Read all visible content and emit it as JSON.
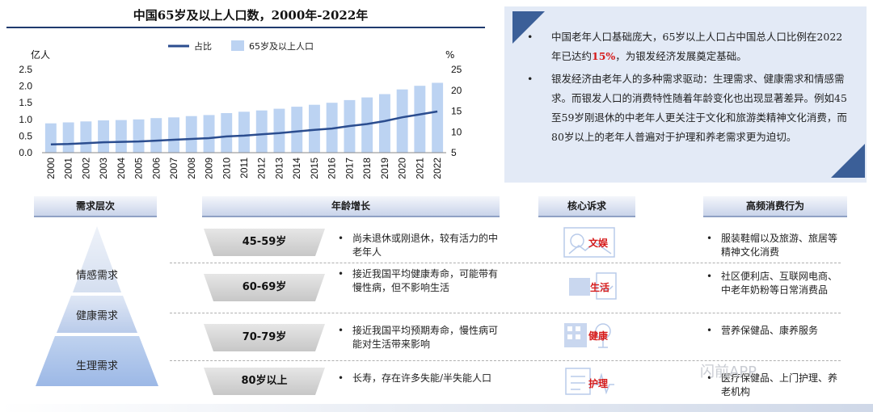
{
  "chart_data": {
    "type": "bar+line",
    "title": "中国65岁及以上人口数，2000年-2022年",
    "categories": [
      "2000",
      "2001",
      "2002",
      "2003",
      "2004",
      "2005",
      "2006",
      "2007",
      "2008",
      "2009",
      "2010",
      "2011",
      "2012",
      "2013",
      "2014",
      "2015",
      "2016",
      "2017",
      "2018",
      "2019",
      "2020",
      "2021",
      "2022"
    ],
    "series": [
      {
        "name": "65岁及以上人口",
        "type": "bar",
        "axis": "left",
        "values": [
          0.88,
          0.91,
          0.94,
          0.97,
          0.98,
          1.0,
          1.04,
          1.06,
          1.1,
          1.13,
          1.19,
          1.23,
          1.27,
          1.32,
          1.38,
          1.44,
          1.5,
          1.58,
          1.66,
          1.76,
          1.9,
          2.01,
          2.1
        ]
      },
      {
        "name": "占比",
        "type": "line",
        "axis": "right",
        "values": [
          7.0,
          7.1,
          7.3,
          7.5,
          7.6,
          7.7,
          7.9,
          8.1,
          8.3,
          8.5,
          8.9,
          9.1,
          9.4,
          9.7,
          10.1,
          10.5,
          10.8,
          11.4,
          11.9,
          12.6,
          13.5,
          14.2,
          14.9
        ]
      }
    ],
    "left_axis": {
      "unit": "亿人",
      "range": [
        0,
        2.5
      ],
      "ticks": [
        "0.0",
        "0.5",
        "1.0",
        "1.5",
        "2.0",
        "2.5"
      ]
    },
    "right_axis": {
      "unit": "%",
      "range": [
        5,
        25
      ],
      "ticks": [
        "5",
        "10",
        "15",
        "20",
        "25"
      ]
    },
    "legend_position": "top",
    "colors": {
      "bar": "#bcd3f2",
      "line": "#2b4d8f"
    }
  },
  "summary": {
    "bullet_char": "•",
    "p1_before": "中国老年人口基础庞大，65岁以上人口占中国总人口比例在2022年已达约",
    "p1_highlight": "15%",
    "p1_after": "，为银发经济发展奠定基础。",
    "p2": "银发经济由老年人的多种需求驱动：生理需求、健康需求和情感需求。而银发人口的消费特性随着年龄变化也出现显著差异。例如45至59岁刚退休的中老年人更关注于文化和旅游类精神文化消费，而80岁以上的老年人普遍对于护理和养老需求更为迫切。"
  },
  "table": {
    "headers": {
      "level": "需求层次",
      "age": "年龄增长",
      "need": "核心诉求",
      "behavior": "高频消费行为"
    },
    "pyramid": [
      "情感需求",
      "健康需求",
      "生理需求"
    ],
    "rows": [
      {
        "age": "45-59岁",
        "desc": "尚未退休或刚退休，较有活力的中老年人",
        "need": "文娱",
        "behavior": "服装鞋帽以及旅游、旅居等精神文化消费"
      },
      {
        "age": "60-69岁",
        "desc": "接近我国平均健康寿命，可能带有慢性病，但不影响生活",
        "need": "生活",
        "behavior": "社区便利店、互联网电商、中老年奶粉等日常消费品"
      },
      {
        "age": "70-79岁",
        "desc": "接近我国平均预期寿命，慢性病可能对生活带来影响",
        "need": "健康",
        "behavior": "营养保健品、康养服务"
      },
      {
        "age": "80岁以上",
        "desc": "长寿，存在许多失能/半失能人口",
        "need": "护理",
        "behavior": "医疗保健品、上门护理、养老机构"
      }
    ]
  },
  "watermark": "闪前APP"
}
